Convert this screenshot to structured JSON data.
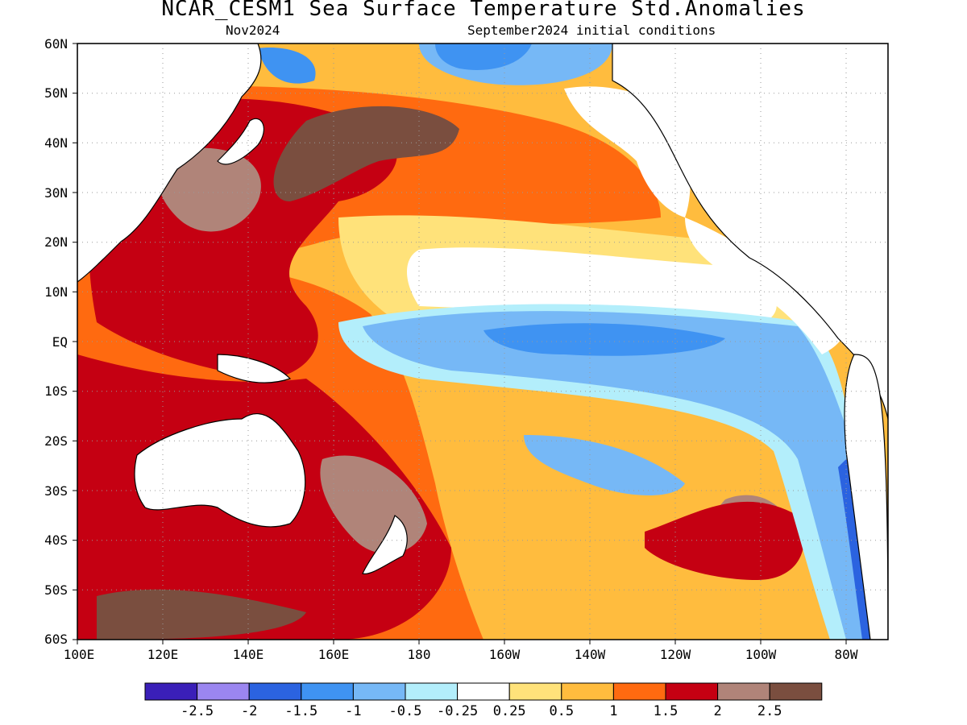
{
  "title": "NCAR_CESM1 Sea Surface Temperature Std.Anomalies",
  "subtitle_left": "Nov2024",
  "subtitle_right": "September2024 initial conditions",
  "lat_labels": [
    "60N",
    "50N",
    "40N",
    "30N",
    "20N",
    "10N",
    "EQ",
    "10S",
    "20S",
    "30S",
    "40S",
    "50S",
    "60S"
  ],
  "lon_labels": [
    "100E",
    "120E",
    "140E",
    "160E",
    "180",
    "160W",
    "140W",
    "120W",
    "100W",
    "80W"
  ],
  "legend": {
    "colors": [
      "#3a1fb8",
      "#9b86f0",
      "#2b63e0",
      "#3f93f2",
      "#76b8f6",
      "#b3eefb",
      "#ffffff",
      "#ffe27a",
      "#ffbc3e",
      "#ff6a10",
      "#c50012",
      "#b08479",
      "#7a4e3f"
    ],
    "labels": [
      "-2.5",
      "-2",
      "-1.5",
      "-1",
      "-0.5",
      "-0.25",
      "0.25",
      "0.5",
      "1",
      "1.5",
      "2",
      "2.5"
    ]
  },
  "map": {
    "lat_range": [
      -60,
      60
    ],
    "lon_range": [
      100,
      290
    ],
    "gridlines": "dotted every 20 deg lon / 10 deg lat"
  }
}
